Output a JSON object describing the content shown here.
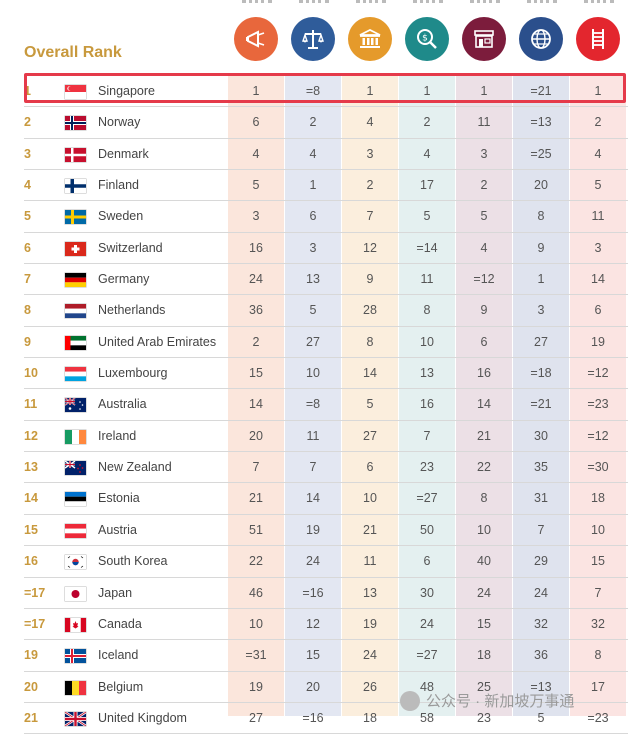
{
  "overall_rank_label": "Overall Rank",
  "columns": [
    {
      "icon": "megaphone-icon",
      "color": "#e8673c",
      "tint": "#fbe6dc"
    },
    {
      "icon": "scales-icon",
      "color": "#2f5c9a",
      "tint": "#e3e7f2"
    },
    {
      "icon": "bank-building-icon",
      "color": "#e59a2b",
      "tint": "#fbeedd"
    },
    {
      "icon": "magnifier-dollar-icon",
      "color": "#1f8a8a",
      "tint": "#e4f0f0"
    },
    {
      "icon": "storefront-icon",
      "color": "#7c1c3c",
      "tint": "#ece0e6"
    },
    {
      "icon": "globe-icon",
      "color": "#2b4f8c",
      "tint": "#dfe3ee"
    },
    {
      "icon": "ladder-icon",
      "color": "#e3262e",
      "tint": "#fbe4e2"
    }
  ],
  "rows": [
    {
      "rank": "1",
      "country": "Singapore",
      "flag": "sg",
      "values": [
        "1",
        "=8",
        "1",
        "1",
        "1",
        "=21",
        "1"
      ]
    },
    {
      "rank": "2",
      "country": "Norway",
      "flag": "no",
      "values": [
        "6",
        "2",
        "4",
        "2",
        "11",
        "=13",
        "2"
      ]
    },
    {
      "rank": "3",
      "country": "Denmark",
      "flag": "dk",
      "values": [
        "4",
        "4",
        "3",
        "4",
        "3",
        "=25",
        "4"
      ]
    },
    {
      "rank": "4",
      "country": "Finland",
      "flag": "fi",
      "values": [
        "5",
        "1",
        "2",
        "17",
        "2",
        "20",
        "5"
      ]
    },
    {
      "rank": "5",
      "country": "Sweden",
      "flag": "se",
      "values": [
        "3",
        "6",
        "7",
        "5",
        "5",
        "8",
        "11"
      ]
    },
    {
      "rank": "6",
      "country": "Switzerland",
      "flag": "ch",
      "values": [
        "16",
        "3",
        "12",
        "=14",
        "4",
        "9",
        "3"
      ]
    },
    {
      "rank": "7",
      "country": "Germany",
      "flag": "de",
      "values": [
        "24",
        "13",
        "9",
        "11",
        "=12",
        "1",
        "14"
      ]
    },
    {
      "rank": "8",
      "country": "Netherlands",
      "flag": "nl",
      "values": [
        "36",
        "5",
        "28",
        "8",
        "9",
        "3",
        "6"
      ]
    },
    {
      "rank": "9",
      "country": "United Arab Emirates",
      "flag": "ae",
      "values": [
        "2",
        "27",
        "8",
        "10",
        "6",
        "27",
        "19"
      ]
    },
    {
      "rank": "10",
      "country": "Luxembourg",
      "flag": "lu",
      "values": [
        "15",
        "10",
        "14",
        "13",
        "16",
        "=18",
        "=12"
      ]
    },
    {
      "rank": "11",
      "country": "Australia",
      "flag": "au",
      "values": [
        "14",
        "=8",
        "5",
        "16",
        "14",
        "=21",
        "=23"
      ]
    },
    {
      "rank": "12",
      "country": "Ireland",
      "flag": "ie",
      "values": [
        "20",
        "11",
        "27",
        "7",
        "21",
        "30",
        "=12"
      ]
    },
    {
      "rank": "13",
      "country": "New Zealand",
      "flag": "nz",
      "values": [
        "7",
        "7",
        "6",
        "23",
        "22",
        "35",
        "=30"
      ]
    },
    {
      "rank": "14",
      "country": "Estonia",
      "flag": "ee",
      "values": [
        "21",
        "14",
        "10",
        "=27",
        "8",
        "31",
        "18"
      ]
    },
    {
      "rank": "15",
      "country": "Austria",
      "flag": "at",
      "values": [
        "51",
        "19",
        "21",
        "50",
        "10",
        "7",
        "10"
      ]
    },
    {
      "rank": "16",
      "country": "South Korea",
      "flag": "kr",
      "values": [
        "22",
        "24",
        "11",
        "6",
        "40",
        "29",
        "15"
      ]
    },
    {
      "rank": "=17",
      "country": "Japan",
      "flag": "jp",
      "values": [
        "46",
        "=16",
        "13",
        "30",
        "24",
        "24",
        "7"
      ]
    },
    {
      "rank": "=17",
      "country": "Canada",
      "flag": "ca",
      "values": [
        "10",
        "12",
        "19",
        "24",
        "15",
        "32",
        "32"
      ]
    },
    {
      "rank": "19",
      "country": "Iceland",
      "flag": "is",
      "values": [
        "=31",
        "15",
        "24",
        "=27",
        "18",
        "36",
        "8"
      ]
    },
    {
      "rank": "20",
      "country": "Belgium",
      "flag": "be",
      "values": [
        "19",
        "20",
        "26",
        "48",
        "25",
        "=13",
        "17"
      ]
    },
    {
      "rank": "21",
      "country": "United Kingdom",
      "flag": "gb",
      "values": [
        "27",
        "=16",
        "18",
        "58",
        "23",
        "5",
        "=23"
      ]
    }
  ],
  "watermark": "公众号 · 新加坡万事通",
  "highlight_color": "#e53a4a",
  "rank_color": "#c8993d"
}
